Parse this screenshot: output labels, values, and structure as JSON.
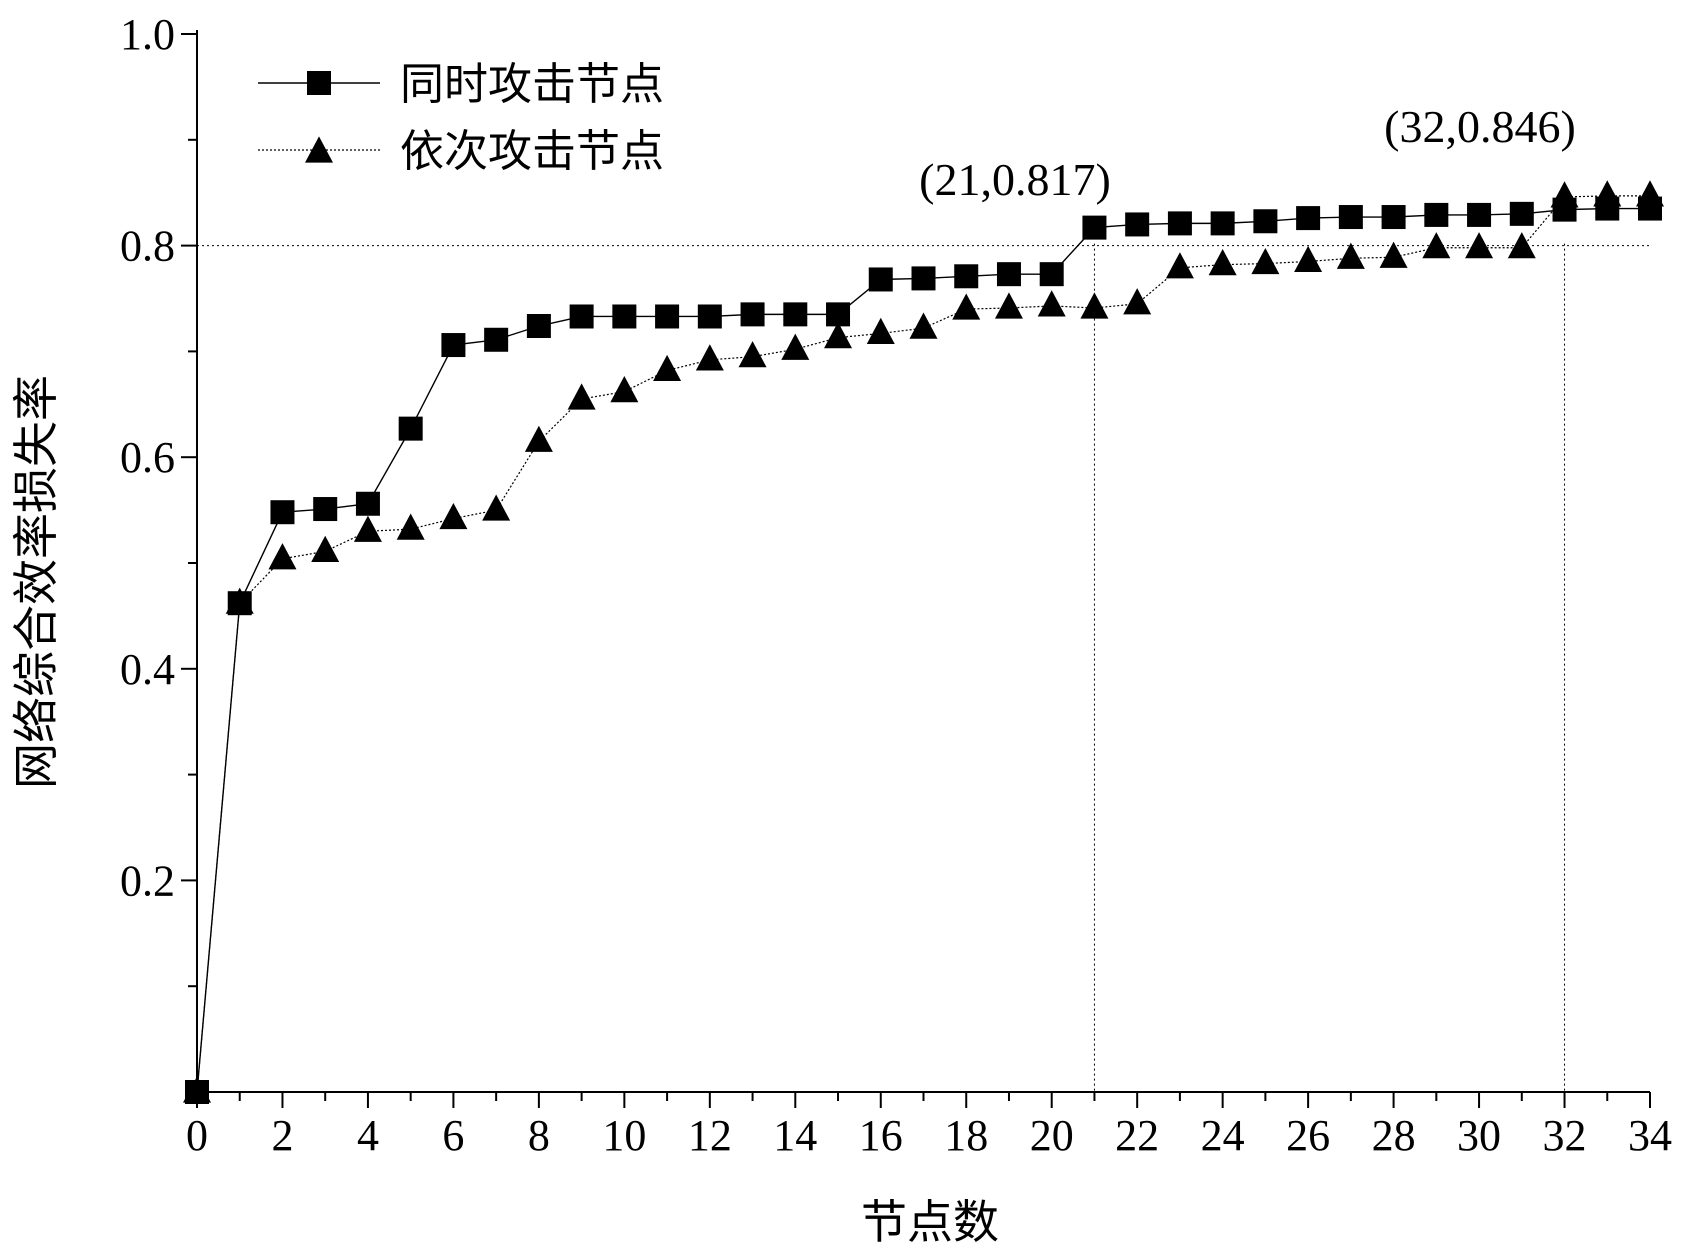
{
  "chart_data": {
    "type": "line",
    "title": "",
    "xlabel": "节点数",
    "ylabel": "网络综合效率损失率",
    "xlim": [
      0,
      34
    ],
    "ylim": [
      0,
      1.0
    ],
    "x_ticks": [
      0,
      2,
      4,
      6,
      8,
      10,
      12,
      14,
      16,
      18,
      20,
      22,
      24,
      26,
      28,
      30,
      32,
      34
    ],
    "y_ticks": [
      0.2,
      0.4,
      0.6,
      0.8,
      1.0
    ],
    "grid": false,
    "legend_position": "top-left",
    "x": [
      0,
      1,
      2,
      3,
      4,
      5,
      6,
      7,
      8,
      9,
      10,
      11,
      12,
      13,
      14,
      15,
      16,
      17,
      18,
      19,
      20,
      21,
      22,
      23,
      24,
      25,
      26,
      27,
      28,
      29,
      30,
      31,
      32,
      33,
      34
    ],
    "series": [
      {
        "name": "同时攻击节点",
        "marker": "square",
        "line_style": "solid",
        "values": [
          0,
          0.462,
          0.548,
          0.551,
          0.556,
          0.627,
          0.706,
          0.711,
          0.724,
          0.733,
          0.733,
          0.733,
          0.733,
          0.735,
          0.735,
          0.735,
          0.768,
          0.769,
          0.771,
          0.773,
          0.773,
          0.817,
          0.82,
          0.821,
          0.821,
          0.823,
          0.826,
          0.827,
          0.827,
          0.829,
          0.829,
          0.83,
          0.834,
          0.835,
          0.835
        ]
      },
      {
        "name": "依次攻击节点",
        "marker": "triangle",
        "line_style": "dotted",
        "values": [
          0,
          0.462,
          0.504,
          0.511,
          0.53,
          0.532,
          0.542,
          0.55,
          0.615,
          0.655,
          0.662,
          0.682,
          0.692,
          0.695,
          0.702,
          0.713,
          0.717,
          0.722,
          0.74,
          0.741,
          0.743,
          0.741,
          0.745,
          0.779,
          0.782,
          0.783,
          0.785,
          0.788,
          0.789,
          0.798,
          0.798,
          0.798,
          0.846,
          0.847,
          0.847
        ]
      }
    ],
    "annotations": [
      {
        "text": "(21,0.817)",
        "x": 21,
        "y": 0.817
      },
      {
        "text": "(32,0.846)",
        "x": 32,
        "y": 0.846
      }
    ],
    "reference_lines": {
      "horizontal_y": 0.8,
      "vertical_x": [
        21,
        32
      ]
    }
  }
}
